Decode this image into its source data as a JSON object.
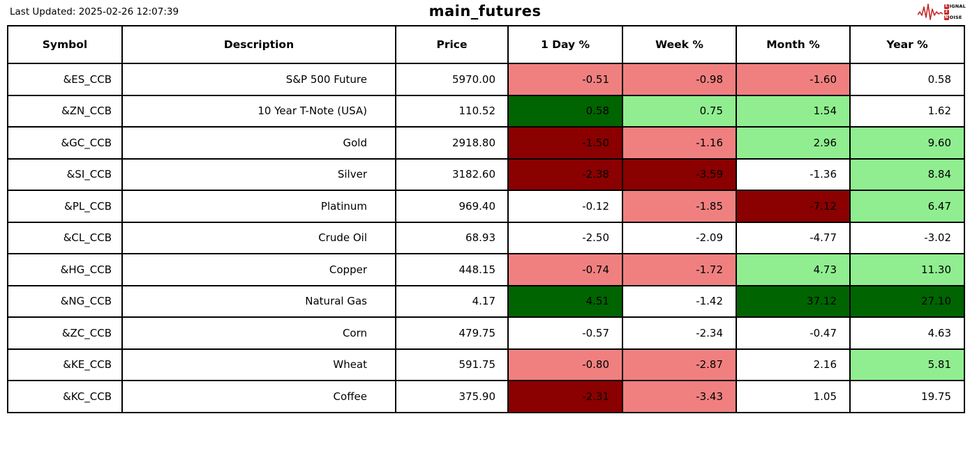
{
  "header": {
    "last_updated": "Last Updated: 2025-02-26 12:07:39",
    "title": "main_futures"
  },
  "logo": {
    "accent": "#c62828",
    "line1_badge": "S",
    "line1_rest": "IGNAL",
    "line2_badge": "2",
    "line3_badge": "N",
    "line3_rest": "OISE"
  },
  "colors": {
    "pos_strong": "#006400",
    "pos_mild": "#90EE90",
    "neg_strong": "#8B0000",
    "neg_mild": "#F08080",
    "neutral": "#FFFFFF"
  },
  "chart_data": {
    "type": "table",
    "title": "main_futures",
    "last_updated": "2025-02-26 12:07:39",
    "columns": [
      "Symbol",
      "Description",
      "Price",
      "1 Day %",
      "Week %",
      "Month %",
      "Year %"
    ],
    "color_legend": {
      "pos_strong": "gain >= ~3%",
      "pos_mild": "mild gain",
      "neg_strong": "loss <= ~-2% (strong)",
      "neg_mild": "mild loss",
      "neutral": "no highlight"
    },
    "rows": [
      {
        "symbol": "&ES_CCB",
        "description": "S&P 500 Future",
        "price": "5970.00",
        "pcts": [
          {
            "value": "-0.51",
            "tone": "neg_mild"
          },
          {
            "value": "-0.98",
            "tone": "neg_mild"
          },
          {
            "value": "-1.60",
            "tone": "neg_mild"
          },
          {
            "value": "0.58",
            "tone": "neutral"
          }
        ]
      },
      {
        "symbol": "&ZN_CCB",
        "description": "10 Year T-Note (USA)",
        "price": "110.52",
        "pcts": [
          {
            "value": "0.58",
            "tone": "pos_strong"
          },
          {
            "value": "0.75",
            "tone": "pos_mild"
          },
          {
            "value": "1.54",
            "tone": "pos_mild"
          },
          {
            "value": "1.62",
            "tone": "neutral"
          }
        ]
      },
      {
        "symbol": "&GC_CCB",
        "description": "Gold",
        "price": "2918.80",
        "pcts": [
          {
            "value": "-1.50",
            "tone": "neg_strong"
          },
          {
            "value": "-1.16",
            "tone": "neg_mild"
          },
          {
            "value": "2.96",
            "tone": "pos_mild"
          },
          {
            "value": "9.60",
            "tone": "pos_mild"
          }
        ]
      },
      {
        "symbol": "&SI_CCB",
        "description": "Silver",
        "price": "3182.60",
        "pcts": [
          {
            "value": "-2.38",
            "tone": "neg_strong"
          },
          {
            "value": "-3.59",
            "tone": "neg_strong"
          },
          {
            "value": "-1.36",
            "tone": "neutral"
          },
          {
            "value": "8.84",
            "tone": "pos_mild"
          }
        ]
      },
      {
        "symbol": "&PL_CCB",
        "description": "Platinum",
        "price": "969.40",
        "pcts": [
          {
            "value": "-0.12",
            "tone": "neutral"
          },
          {
            "value": "-1.85",
            "tone": "neg_mild"
          },
          {
            "value": "-7.12",
            "tone": "neg_strong"
          },
          {
            "value": "6.47",
            "tone": "pos_mild"
          }
        ]
      },
      {
        "symbol": "&CL_CCB",
        "description": "Crude Oil",
        "price": "68.93",
        "pcts": [
          {
            "value": "-2.50",
            "tone": "neutral"
          },
          {
            "value": "-2.09",
            "tone": "neutral"
          },
          {
            "value": "-4.77",
            "tone": "neutral"
          },
          {
            "value": "-3.02",
            "tone": "neutral"
          }
        ]
      },
      {
        "symbol": "&HG_CCB",
        "description": "Copper",
        "price": "448.15",
        "pcts": [
          {
            "value": "-0.74",
            "tone": "neg_mild"
          },
          {
            "value": "-1.72",
            "tone": "neg_mild"
          },
          {
            "value": "4.73",
            "tone": "pos_mild"
          },
          {
            "value": "11.30",
            "tone": "pos_mild"
          }
        ]
      },
      {
        "symbol": "&NG_CCB",
        "description": "Natural Gas",
        "price": "4.17",
        "pcts": [
          {
            "value": "4.51",
            "tone": "pos_strong"
          },
          {
            "value": "-1.42",
            "tone": "neutral"
          },
          {
            "value": "37.12",
            "tone": "pos_strong"
          },
          {
            "value": "27.10",
            "tone": "pos_strong"
          }
        ]
      },
      {
        "symbol": "&ZC_CCB",
        "description": "Corn",
        "price": "479.75",
        "pcts": [
          {
            "value": "-0.57",
            "tone": "neutral"
          },
          {
            "value": "-2.34",
            "tone": "neutral"
          },
          {
            "value": "-0.47",
            "tone": "neutral"
          },
          {
            "value": "4.63",
            "tone": "neutral"
          }
        ]
      },
      {
        "symbol": "&KE_CCB",
        "description": "Wheat",
        "price": "591.75",
        "pcts": [
          {
            "value": "-0.80",
            "tone": "neg_mild"
          },
          {
            "value": "-2.87",
            "tone": "neg_mild"
          },
          {
            "value": "2.16",
            "tone": "neutral"
          },
          {
            "value": "5.81",
            "tone": "pos_mild"
          }
        ]
      },
      {
        "symbol": "&KC_CCB",
        "description": "Coffee",
        "price": "375.90",
        "pcts": [
          {
            "value": "-2.31",
            "tone": "neg_strong"
          },
          {
            "value": "-3.43",
            "tone": "neg_mild"
          },
          {
            "value": "1.05",
            "tone": "neutral"
          },
          {
            "value": "19.75",
            "tone": "neutral"
          }
        ]
      }
    ]
  }
}
